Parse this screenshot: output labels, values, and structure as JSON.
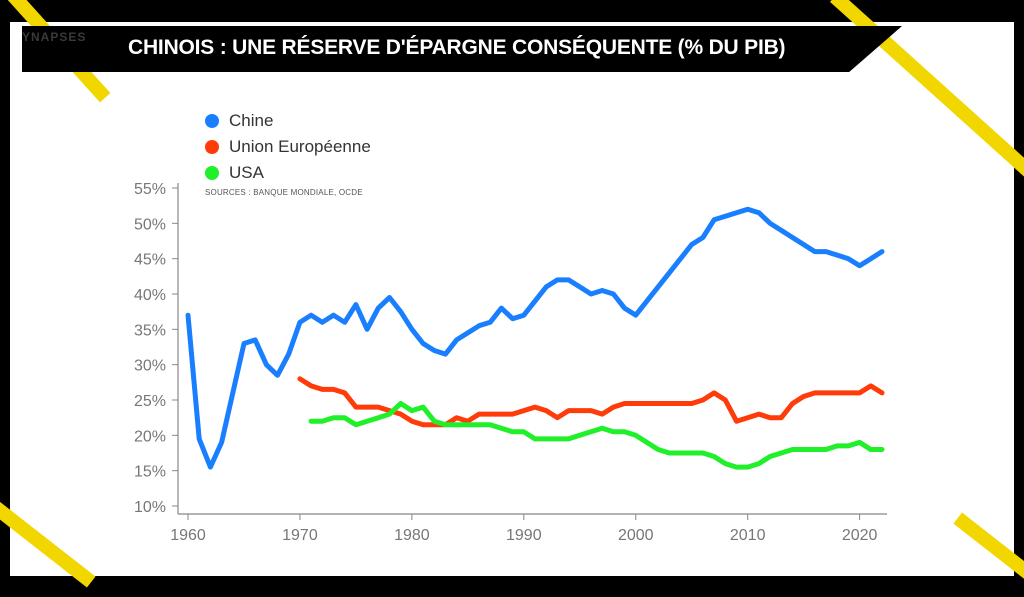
{
  "header": {
    "logo_text": "YNAPSES",
    "title": "CHINOIS : UNE RÉSERVE D'ÉPARGNE CONSÉQUENTE (% DU PIB)"
  },
  "colors": {
    "accent": "#f2d600",
    "china": "#1a7fff",
    "eu": "#ff3b0a",
    "usa": "#1ff02a"
  },
  "chart_data": {
    "type": "line",
    "title": "CHINOIS : UNE RÉSERVE D'ÉPARGNE CONSÉQUENTE (% DU PIB)",
    "source": "SOURCES : BANQUE MONDIALE, OCDE",
    "xlim": [
      1960,
      2022
    ],
    "ylim": [
      10,
      55
    ],
    "x_ticks": [
      "1960",
      "1970",
      "1980",
      "1990",
      "2000",
      "2010",
      "2020"
    ],
    "y_ticks": [
      "10%",
      "15%",
      "20%",
      "25%",
      "30%",
      "35%",
      "40%",
      "45%",
      "50%",
      "55%"
    ],
    "legend_position": "top-left",
    "series": [
      {
        "name": "Chine",
        "color": "#1a7fff",
        "points": [
          [
            1960,
            37
          ],
          [
            1961,
            19.5
          ],
          [
            1962,
            15.5
          ],
          [
            1963,
            19
          ],
          [
            1964,
            26
          ],
          [
            1965,
            33
          ],
          [
            1966,
            33.5
          ],
          [
            1967,
            30
          ],
          [
            1968,
            28.5
          ],
          [
            1969,
            31.5
          ],
          [
            1970,
            36
          ],
          [
            1971,
            37
          ],
          [
            1972,
            36
          ],
          [
            1973,
            37
          ],
          [
            1974,
            36
          ],
          [
            1975,
            38.5
          ],
          [
            1976,
            35
          ],
          [
            1977,
            38
          ],
          [
            1978,
            39.5
          ],
          [
            1979,
            37.5
          ],
          [
            1980,
            35
          ],
          [
            1981,
            33
          ],
          [
            1982,
            32
          ],
          [
            1983,
            31.5
          ],
          [
            1984,
            33.5
          ],
          [
            1985,
            34.5
          ],
          [
            1986,
            35.5
          ],
          [
            1987,
            36
          ],
          [
            1988,
            38
          ],
          [
            1989,
            36.5
          ],
          [
            1990,
            37
          ],
          [
            1991,
            39
          ],
          [
            1992,
            41
          ],
          [
            1993,
            42
          ],
          [
            1994,
            42
          ],
          [
            1995,
            41
          ],
          [
            1996,
            40
          ],
          [
            1997,
            40.5
          ],
          [
            1998,
            40
          ],
          [
            1999,
            38
          ],
          [
            2000,
            37
          ],
          [
            2001,
            39
          ],
          [
            2002,
            41
          ],
          [
            2003,
            43
          ],
          [
            2004,
            45
          ],
          [
            2005,
            47
          ],
          [
            2006,
            48
          ],
          [
            2007,
            50.5
          ],
          [
            2008,
            51
          ],
          [
            2009,
            51.5
          ],
          [
            2010,
            52
          ],
          [
            2011,
            51.5
          ],
          [
            2012,
            50
          ],
          [
            2013,
            49
          ],
          [
            2014,
            48
          ],
          [
            2015,
            47
          ],
          [
            2016,
            46
          ],
          [
            2017,
            46
          ],
          [
            2018,
            45.5
          ],
          [
            2019,
            45
          ],
          [
            2020,
            44
          ],
          [
            2021,
            45
          ],
          [
            2022,
            46
          ]
        ]
      },
      {
        "name": "Union Européenne",
        "color": "#ff3b0a",
        "points": [
          [
            1970,
            28
          ],
          [
            1971,
            27
          ],
          [
            1972,
            26.5
          ],
          [
            1973,
            26.5
          ],
          [
            1974,
            26
          ],
          [
            1975,
            24
          ],
          [
            1976,
            24
          ],
          [
            1977,
            24
          ],
          [
            1978,
            23.5
          ],
          [
            1979,
            23
          ],
          [
            1980,
            22
          ],
          [
            1981,
            21.5
          ],
          [
            1982,
            21.5
          ],
          [
            1983,
            21.5
          ],
          [
            1984,
            22.5
          ],
          [
            1985,
            22
          ],
          [
            1986,
            23
          ],
          [
            1987,
            23
          ],
          [
            1988,
            23
          ],
          [
            1989,
            23
          ],
          [
            1990,
            23.5
          ],
          [
            1991,
            24
          ],
          [
            1992,
            23.5
          ],
          [
            1993,
            22.5
          ],
          [
            1994,
            23.5
          ],
          [
            1995,
            23.5
          ],
          [
            1996,
            23.5
          ],
          [
            1997,
            23
          ],
          [
            1998,
            24
          ],
          [
            1999,
            24.5
          ],
          [
            2000,
            24.5
          ],
          [
            2001,
            24.5
          ],
          [
            2002,
            24.5
          ],
          [
            2003,
            24.5
          ],
          [
            2004,
            24.5
          ],
          [
            2005,
            24.5
          ],
          [
            2006,
            25
          ],
          [
            2007,
            26
          ],
          [
            2008,
            25
          ],
          [
            2009,
            22
          ],
          [
            2010,
            22.5
          ],
          [
            2011,
            23
          ],
          [
            2012,
            22.5
          ],
          [
            2013,
            22.5
          ],
          [
            2014,
            24.5
          ],
          [
            2015,
            25.5
          ],
          [
            2016,
            26
          ],
          [
            2017,
            26
          ],
          [
            2018,
            26
          ],
          [
            2019,
            26
          ],
          [
            2020,
            26
          ],
          [
            2021,
            27
          ],
          [
            2022,
            26
          ]
        ]
      },
      {
        "name": "USA",
        "color": "#1ff02a",
        "points": [
          [
            1971,
            22
          ],
          [
            1972,
            22
          ],
          [
            1973,
            22.5
          ],
          [
            1974,
            22.5
          ],
          [
            1975,
            21.5
          ],
          [
            1976,
            22
          ],
          [
            1977,
            22.5
          ],
          [
            1978,
            23
          ],
          [
            1979,
            24.5
          ],
          [
            1980,
            23.5
          ],
          [
            1981,
            24
          ],
          [
            1982,
            22
          ],
          [
            1983,
            21.5
          ],
          [
            1984,
            21.5
          ],
          [
            1985,
            21.5
          ],
          [
            1986,
            21.5
          ],
          [
            1987,
            21.5
          ],
          [
            1988,
            21
          ],
          [
            1989,
            20.5
          ],
          [
            1990,
            20.5
          ],
          [
            1991,
            19.5
          ],
          [
            1992,
            19.5
          ],
          [
            1993,
            19.5
          ],
          [
            1994,
            19.5
          ],
          [
            1995,
            20
          ],
          [
            1996,
            20.5
          ],
          [
            1997,
            21
          ],
          [
            1998,
            20.5
          ],
          [
            1999,
            20.5
          ],
          [
            2000,
            20
          ],
          [
            2001,
            19
          ],
          [
            2002,
            18
          ],
          [
            2003,
            17.5
          ],
          [
            2004,
            17.5
          ],
          [
            2005,
            17.5
          ],
          [
            2006,
            17.5
          ],
          [
            2007,
            17
          ],
          [
            2008,
            16
          ],
          [
            2009,
            15.5
          ],
          [
            2010,
            15.5
          ],
          [
            2011,
            16
          ],
          [
            2012,
            17
          ],
          [
            2013,
            17.5
          ],
          [
            2014,
            18
          ],
          [
            2015,
            18
          ],
          [
            2016,
            18
          ],
          [
            2017,
            18
          ],
          [
            2018,
            18.5
          ],
          [
            2019,
            18.5
          ],
          [
            2020,
            19
          ],
          [
            2021,
            18
          ],
          [
            2022,
            18
          ]
        ]
      }
    ]
  }
}
